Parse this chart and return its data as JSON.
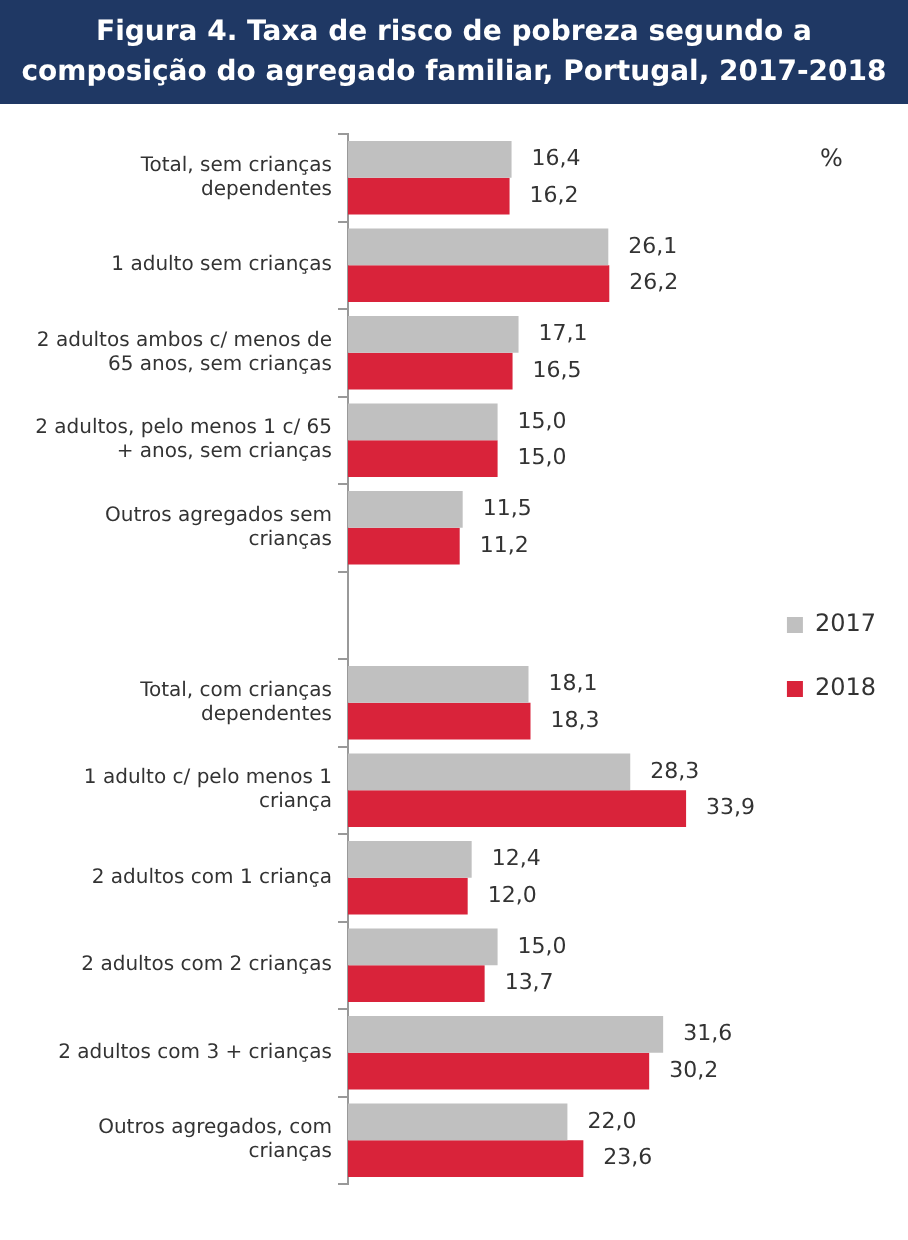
{
  "chart_data": {
    "type": "bar",
    "orientation": "horizontal",
    "title": "Figura 4. Taxa de risco de pobreza segundo a composição do agregado familiar, Portugal, 2017-2018",
    "categories": [
      "Total, sem crianças dependentes",
      "1 adulto sem crianças",
      "2 adultos ambos c/ menos de 65 anos, sem crianças",
      "2 adultos, pelo menos 1 c/ 65 + anos, sem crianças",
      "Outros agregados sem crianças",
      null,
      "Total, com crianças dependentes",
      "1 adulto c/ pelo menos 1 criança",
      "2 adultos com 1 criança",
      "2 adultos com 2 crianças",
      "2 adultos com 3 + crianças",
      "Outros agregados, com crianças"
    ],
    "series": [
      {
        "name": "2017",
        "color": "#c0c0c0",
        "values": [
          16.4,
          26.1,
          17.1,
          15.0,
          11.5,
          null,
          18.1,
          28.3,
          12.4,
          15.0,
          31.6,
          22.0
        ],
        "value_labels": [
          "16,4",
          "26,1",
          "17,1",
          "15,0",
          "11,5",
          null,
          "18,1",
          "28,3",
          "12,4",
          "15,0",
          "31,6",
          "22,0"
        ]
      },
      {
        "name": "2018",
        "color": "#d9233a",
        "values": [
          16.2,
          26.2,
          16.5,
          15.0,
          11.2,
          null,
          18.3,
          33.9,
          12.0,
          13.7,
          30.2,
          23.6
        ],
        "value_labels": [
          "16,2",
          "26,2",
          "16,5",
          "15,0",
          "11,2",
          null,
          "18,3",
          "33,9",
          "12,0",
          "13,7",
          "30,2",
          "23,6"
        ]
      }
    ],
    "tick_labels": "y",
    "legend": "right",
    "annotations": [
      "%"
    ]
  }
}
